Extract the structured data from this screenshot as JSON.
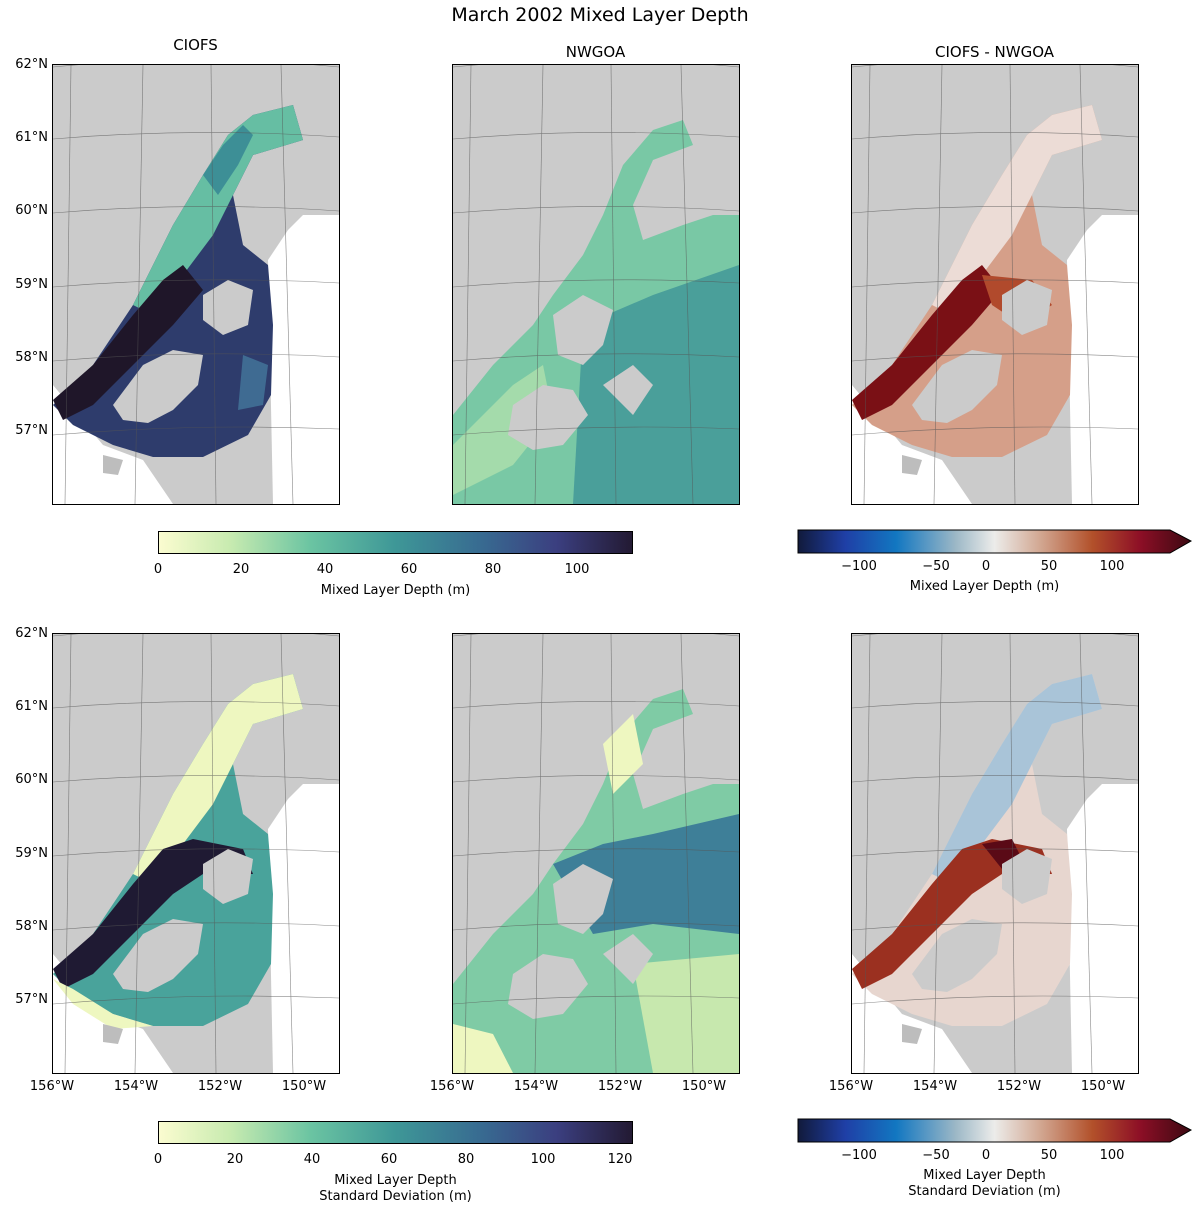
{
  "figure": {
    "title": "March 2002 Mixed Layer Depth"
  },
  "panels": {
    "col1_title": "CIOFS",
    "col2_title": "NWGOA",
    "col3_title": "CIOFS - NWGOA"
  },
  "lat_labels": [
    "62°N",
    "61°N",
    "60°N",
    "59°N",
    "58°N",
    "57°N"
  ],
  "lon_labels": [
    "156°W",
    "154°W",
    "152°W",
    "150°W"
  ],
  "colorbars": {
    "mean": {
      "label": "Mixed Layer Depth (m)",
      "ticks": [
        "0",
        "20",
        "40",
        "60",
        "80",
        "100"
      ],
      "min": 0,
      "max": 113
    },
    "mean_diff": {
      "label": "Mixed Layer Depth (m)",
      "ticks": [
        "−100",
        "−50",
        "0",
        "50",
        "100"
      ],
      "min": -140,
      "max": 140,
      "extend": "max"
    },
    "std": {
      "label_line1": "Mixed Layer Depth",
      "label_line2": "Standard Deviation (m)",
      "ticks": [
        "0",
        "20",
        "40",
        "60",
        "80",
        "100",
        "120"
      ],
      "min": 0,
      "max": 123
    },
    "std_diff": {
      "label_line1": "Mixed Layer Depth",
      "label_line2": "Standard Deviation (m)",
      "ticks": [
        "−100",
        "−50",
        "0",
        "50",
        "100"
      ],
      "min": -140,
      "max": 140,
      "extend": "max"
    }
  },
  "colors": {
    "land": "#cbcbcb",
    "deep": "#231a33",
    "teal": "#5ab8a0",
    "pale": "#f7f8c6",
    "red": "#8b1515",
    "blue": "#1d4ea8"
  }
}
